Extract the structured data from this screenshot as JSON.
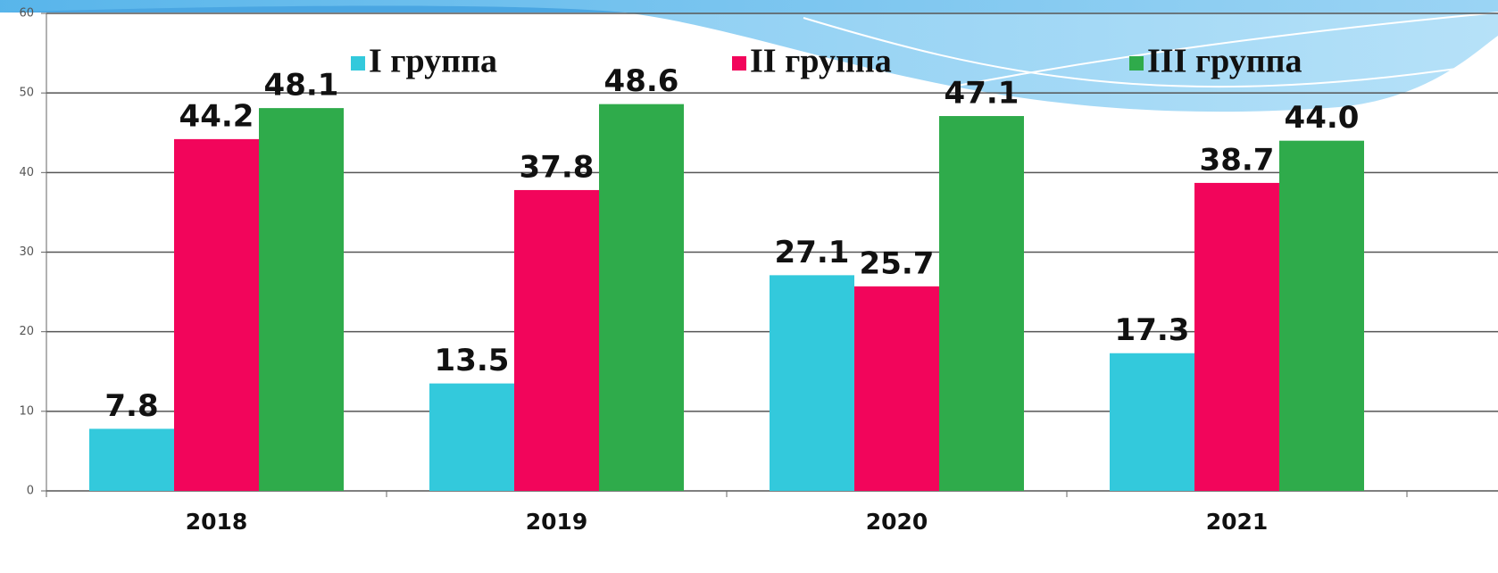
{
  "chart_data": {
    "type": "bar",
    "categories": [
      "2018",
      "2019",
      "2020",
      "2021"
    ],
    "series": [
      {
        "name": "I группа",
        "color": "#33c9dc",
        "values": [
          7.8,
          13.5,
          27.1,
          17.3
        ],
        "value_labels": [
          "7.8",
          "13.5",
          "27.1",
          "17.3"
        ]
      },
      {
        "name": "II группа",
        "color": "#f2055b",
        "values": [
          44.2,
          37.8,
          25.7,
          38.7
        ],
        "value_labels": [
          "44.2",
          "37.8",
          "25.7",
          "38.7"
        ]
      },
      {
        "name": "III группа",
        "color": "#2fab4b",
        "values": [
          48.1,
          48.6,
          47.1,
          44.0
        ],
        "value_labels": [
          "48.1",
          "48.6",
          "47.1",
          "44.0"
        ]
      }
    ],
    "ylim": [
      0,
      60
    ],
    "yticks": [
      0,
      10,
      20,
      30,
      40,
      50,
      60
    ],
    "grid": true,
    "legend": "top"
  }
}
